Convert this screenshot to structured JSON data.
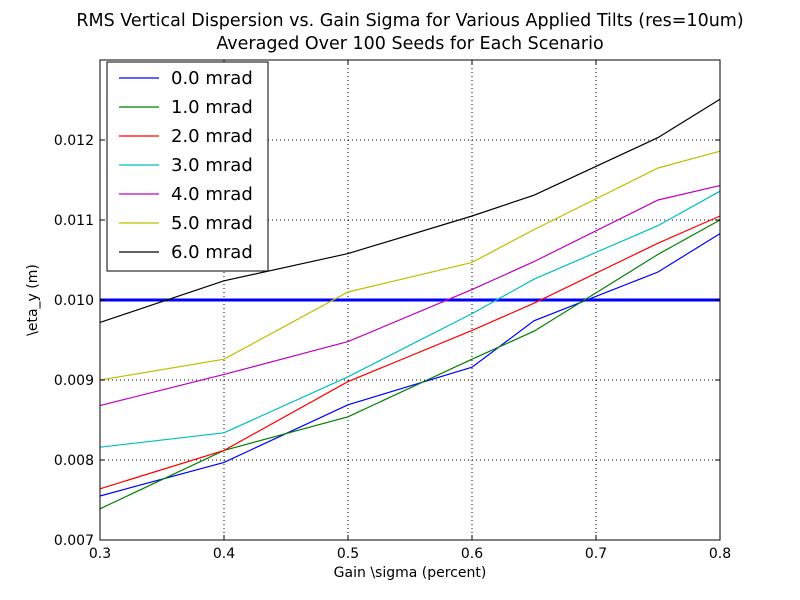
{
  "chart_data": {
    "type": "line",
    "title_line1": "RMS Vertical Dispersion vs. Gain Sigma for Various Applied Tilts (res=10um)",
    "title_line2": "Averaged Over 100 Seeds for Each Scenario",
    "xlabel": "Gain \\sigma (percent)",
    "ylabel": "\\eta_y (m)",
    "xlim": [
      0.3,
      0.8
    ],
    "ylim": [
      0.007,
      0.013
    ],
    "x_ticks": [
      0.3,
      0.4,
      0.5,
      0.6,
      0.7,
      0.8
    ],
    "x_tick_labels": [
      "0.3",
      "0.4",
      "0.5",
      "0.6",
      "0.7",
      "0.8"
    ],
    "y_ticks": [
      0.007,
      0.008,
      0.009,
      0.01,
      0.011,
      0.012
    ],
    "y_tick_labels": [
      "0.007",
      "0.008",
      "0.009",
      "0.010",
      "0.011",
      "0.012"
    ],
    "grid": true,
    "grid_style": "dotted",
    "legend_position": "top-left",
    "x": [
      0.3,
      0.4,
      0.5,
      0.6,
      0.65,
      0.75,
      0.8
    ],
    "series": [
      {
        "name": "0.0 mrad",
        "color": "#0000ff",
        "values": [
          0.00755,
          0.00797,
          0.00869,
          0.00916,
          0.00974,
          0.01035,
          0.01083
        ]
      },
      {
        "name": "1.0 mrad",
        "color": "#008000",
        "values": [
          0.00739,
          0.00812,
          0.00854,
          0.00926,
          0.00961,
          0.01057,
          0.011
        ]
      },
      {
        "name": "2.0 mrad",
        "color": "#ff0000",
        "values": [
          0.00764,
          0.00812,
          0.00898,
          0.00962,
          0.00996,
          0.01071,
          0.01105
        ]
      },
      {
        "name": "3.0 mrad",
        "color": "#00bfbf",
        "values": [
          0.00816,
          0.00834,
          0.00904,
          0.00983,
          0.01026,
          0.01093,
          0.01136
        ]
      },
      {
        "name": "4.0 mrad",
        "color": "#bf00bf",
        "values": [
          0.00868,
          0.00907,
          0.00948,
          0.01013,
          0.01048,
          0.01125,
          0.01143
        ]
      },
      {
        "name": "5.0 mrad",
        "color": "#bfbf00",
        "values": [
          0.009,
          0.00926,
          0.0101,
          0.01047,
          0.01088,
          0.01165,
          0.01186
        ]
      },
      {
        "name": "6.0 mrad",
        "color": "#000000",
        "values": [
          0.00972,
          0.01024,
          0.01058,
          0.01105,
          0.01131,
          0.01203,
          0.01251
        ]
      }
    ],
    "reference_line": {
      "y": 0.01,
      "color": "#0000ff"
    }
  }
}
